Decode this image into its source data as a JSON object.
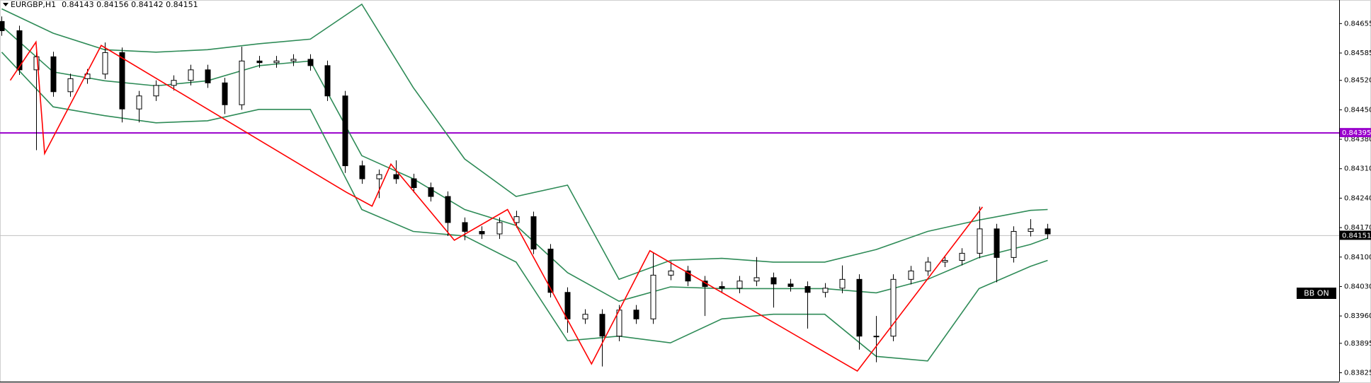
{
  "chart_data": {
    "type": "candlestick",
    "title": "EURGBP,H1",
    "info": "0.84143 0.84156 0.84142 0.84151",
    "indicator_label": "BB ON",
    "up_color": "#ffffff",
    "down_color": "#000000",
    "xlim": [
      -0.1,
      78
    ],
    "ylim": [
      0.83804,
      0.84711
    ],
    "yticks": [
      0.84655,
      0.84585,
      {
        "value": 0.8452,
        "label": "0.84520"
      },
      {
        "value": 0.8445,
        "label": "0.84450"
      },
      {
        "value": 0.8438,
        "label": "0.84380"
      },
      {
        "value": 0.8431,
        "label": "0.84310"
      },
      {
        "value": 0.8424,
        "label": "0.84240"
      },
      {
        "value": 0.8417,
        "label": "0.84170"
      },
      {
        "value": 0.841,
        "label": "0.84100"
      },
      {
        "value": 0.8403,
        "label": "0.84030"
      },
      {
        "value": 0.8396,
        "label": "0.83960"
      },
      0.83895,
      0.83825
    ],
    "open": [
      0.8466,
      0.84638,
      0.84545,
      0.84576,
      0.84493,
      0.84524,
      0.84535,
      0.84586,
      0.84452,
      0.84483,
      0.84508,
      0.8452,
      0.84545,
      0.84514,
      0.84462,
      0.84566,
      0.84562,
      0.84566,
      0.8457,
      0.84555,
      0.84483,
      0.84317,
      0.84286,
      0.84296,
      0.84286,
      0.84265,
      0.84244,
      0.84182,
      0.84161,
      0.84155,
      0.84182,
      0.84196,
      0.84119,
      0.84016,
      0.83953,
      0.83964,
      0.83912,
      0.83974,
      0.83953,
      0.84057,
      0.84067,
      0.84043,
      0.8403,
      0.84026,
      0.84043,
      0.84051,
      0.84036,
      0.8403,
      0.84016,
      0.84026,
      0.84047,
      0.83912,
      0.83912,
      0.84047,
      0.84067,
      0.84088,
      0.84092,
      0.84109,
      0.84167,
      0.84099,
      0.84161,
      0.84167
    ],
    "high": [
      0.84672,
      0.8465,
      0.84588,
      0.84588,
      0.84536,
      0.84547,
      0.8461,
      0.84598,
      0.84495,
      0.8452,
      0.84532,
      0.84557,
      0.84557,
      0.84526,
      0.846,
      0.84578,
      0.84578,
      0.84582,
      0.84582,
      0.84567,
      0.84495,
      0.84329,
      0.84308,
      0.8433,
      0.84298,
      0.84277,
      0.84256,
      0.84194,
      0.84173,
      0.84194,
      0.8421,
      0.84208,
      0.84131,
      0.84028,
      0.83976,
      0.83976,
      0.83986,
      0.83986,
      0.8411,
      0.8409,
      0.84079,
      0.84055,
      0.84042,
      0.84055,
      0.841,
      0.84063,
      0.84048,
      0.84042,
      0.84038,
      0.8408,
      0.84059,
      0.8396,
      0.84059,
      0.84079,
      0.841,
      0.84104,
      0.84121,
      0.8422,
      0.84179,
      0.84173,
      0.8419,
      0.84179
    ],
    "low": [
      0.84626,
      0.84533,
      0.84354,
      0.84481,
      0.84481,
      0.84512,
      0.84523,
      0.8442,
      0.8442,
      0.84471,
      0.84496,
      0.84508,
      0.84502,
      0.8444,
      0.8445,
      0.8455,
      0.8455,
      0.84554,
      0.84543,
      0.84471,
      0.843,
      0.84274,
      0.8424,
      0.84274,
      0.84253,
      0.84232,
      0.8415,
      0.8414,
      0.84143,
      0.84143,
      0.8417,
      0.84107,
      0.84004,
      0.8392,
      0.83941,
      0.8384,
      0.839,
      0.83941,
      0.83941,
      0.84045,
      0.84031,
      0.8396,
      0.84014,
      0.84014,
      0.84031,
      0.8398,
      0.84018,
      0.8393,
      0.84004,
      0.84014,
      0.8388,
      0.8385,
      0.839,
      0.84035,
      0.84055,
      0.84076,
      0.8408,
      0.84097,
      0.8404,
      0.84087,
      0.84149,
      0.84143
    ],
    "close": [
      0.84638,
      0.84545,
      0.84576,
      0.84493,
      0.84524,
      0.84535,
      0.84586,
      0.84452,
      0.84483,
      0.84508,
      0.8452,
      0.84545,
      0.84514,
      0.84462,
      0.84566,
      0.84562,
      0.84566,
      0.8457,
      0.84555,
      0.84483,
      0.84317,
      0.84286,
      0.84296,
      0.84286,
      0.84265,
      0.84244,
      0.84182,
      0.84161,
      0.84155,
      0.84182,
      0.84196,
      0.84119,
      0.84016,
      0.83953,
      0.83964,
      0.83912,
      0.83974,
      0.83953,
      0.84057,
      0.84067,
      0.84043,
      0.8403,
      0.84026,
      0.84043,
      0.84051,
      0.84036,
      0.8403,
      0.84016,
      0.84026,
      0.84047,
      0.83912,
      0.83912,
      0.84047,
      0.84067,
      0.84088,
      0.84092,
      0.84109,
      0.84167,
      0.84099,
      0.84161,
      0.84167,
      0.84155
    ],
    "band_x": [
      0,
      3,
      6,
      9,
      12,
      15,
      18,
      21,
      24,
      27,
      30,
      33,
      36,
      39,
      42,
      45,
      48,
      51,
      54,
      57,
      60,
      61
    ],
    "bands": [
      {
        "color": "#2e8b57",
        "values": [
          0.8469,
          0.84632,
          0.84593,
          0.84587,
          0.84593,
          0.84607,
          0.84618,
          0.84701,
          0.84503,
          0.84333,
          0.84244,
          0.84271,
          0.84047,
          0.84092,
          0.84097,
          0.84088,
          0.84088,
          0.84118,
          0.84161,
          0.84188,
          0.84211,
          0.84213
        ]
      },
      {
        "color": "#2e8b57",
        "values": [
          0.84649,
          0.8454,
          0.84519,
          0.84507,
          0.84519,
          0.84555,
          0.84566,
          0.84341,
          0.84286,
          0.84213,
          0.84175,
          0.84063,
          0.83995,
          0.84029,
          0.84025,
          0.84025,
          0.84025,
          0.84015,
          0.84047,
          0.84099,
          0.8413,
          0.84145
        ]
      },
      {
        "color": "#2e8b57",
        "values": [
          0.84587,
          0.84457,
          0.84436,
          0.84419,
          0.84424,
          0.84451,
          0.84451,
          0.84213,
          0.84161,
          0.8415,
          0.84088,
          0.83901,
          0.83912,
          0.83896,
          0.83953,
          0.83964,
          0.83964,
          0.83864,
          0.83853,
          0.84025,
          0.84078,
          0.84092
        ]
      }
    ],
    "zigzag": {
      "color": "#ff0000",
      "x": [
        0.5,
        2,
        2.5,
        5.8,
        20.1,
        21.6,
        22.7,
        26.4,
        29.5,
        34.4,
        37.8,
        49.9,
        57.2
      ],
      "values": [
        0.8452,
        0.84611,
        0.84346,
        0.84603,
        0.84254,
        0.84221,
        0.84321,
        0.8414,
        0.84213,
        0.83846,
        0.84115,
        0.83829,
        0.84219
      ]
    },
    "hline": {
      "value": 0.84395,
      "label": "0.84395",
      "color": "#9900cc"
    },
    "current_price": {
      "value": 0.84151,
      "label": "0.84151",
      "color": "#c0c0c0"
    }
  }
}
